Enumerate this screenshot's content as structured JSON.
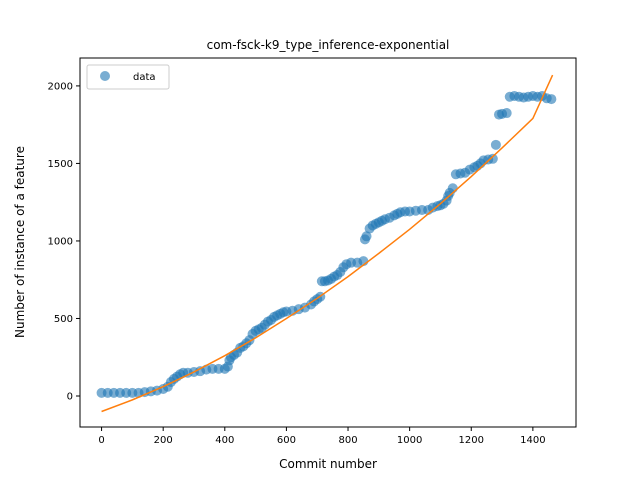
{
  "chart_data": {
    "type": "scatter",
    "title": "com-fsck-k9_type_inference-exponential",
    "xlabel": "Commit number",
    "ylabel": "Number of instance of a feature",
    "xlim": [
      -70,
      1540
    ],
    "ylim": [
      -200,
      2180
    ],
    "xticks": [
      0,
      200,
      400,
      600,
      800,
      1000,
      1200,
      1400
    ],
    "yticks": [
      0,
      500,
      1000,
      1500,
      2000
    ],
    "grid": false,
    "legend_position": "upper-left",
    "colors": {
      "data": "#1f77b4",
      "fit": "#ff7f0e"
    },
    "series": [
      {
        "name": "data",
        "kind": "scatter",
        "points": [
          [
            0,
            20
          ],
          [
            20,
            20
          ],
          [
            40,
            20
          ],
          [
            60,
            20
          ],
          [
            80,
            20
          ],
          [
            100,
            20
          ],
          [
            120,
            20
          ],
          [
            140,
            25
          ],
          [
            160,
            30
          ],
          [
            180,
            35
          ],
          [
            200,
            45
          ],
          [
            215,
            60
          ],
          [
            225,
            90
          ],
          [
            235,
            110
          ],
          [
            245,
            125
          ],
          [
            255,
            140
          ],
          [
            265,
            150
          ],
          [
            280,
            150
          ],
          [
            300,
            155
          ],
          [
            320,
            160
          ],
          [
            340,
            170
          ],
          [
            360,
            175
          ],
          [
            380,
            175
          ],
          [
            400,
            175
          ],
          [
            410,
            190
          ],
          [
            415,
            230
          ],
          [
            420,
            250
          ],
          [
            430,
            265
          ],
          [
            440,
            280
          ],
          [
            450,
            310
          ],
          [
            460,
            320
          ],
          [
            470,
            340
          ],
          [
            480,
            360
          ],
          [
            490,
            400
          ],
          [
            500,
            420
          ],
          [
            510,
            430
          ],
          [
            520,
            440
          ],
          [
            530,
            460
          ],
          [
            540,
            480
          ],
          [
            550,
            490
          ],
          [
            560,
            510
          ],
          [
            570,
            520
          ],
          [
            580,
            530
          ],
          [
            590,
            540
          ],
          [
            600,
            545
          ],
          [
            620,
            550
          ],
          [
            640,
            560
          ],
          [
            660,
            570
          ],
          [
            680,
            590
          ],
          [
            690,
            610
          ],
          [
            700,
            625
          ],
          [
            710,
            640
          ],
          [
            715,
            740
          ],
          [
            725,
            740
          ],
          [
            735,
            745
          ],
          [
            745,
            755
          ],
          [
            755,
            770
          ],
          [
            765,
            780
          ],
          [
            775,
            800
          ],
          [
            785,
            830
          ],
          [
            795,
            850
          ],
          [
            810,
            860
          ],
          [
            830,
            860
          ],
          [
            850,
            870
          ],
          [
            855,
            1010
          ],
          [
            860,
            1030
          ],
          [
            870,
            1080
          ],
          [
            880,
            1100
          ],
          [
            890,
            1110
          ],
          [
            900,
            1120
          ],
          [
            910,
            1130
          ],
          [
            920,
            1140
          ],
          [
            935,
            1150
          ],
          [
            950,
            1165
          ],
          [
            960,
            1175
          ],
          [
            970,
            1185
          ],
          [
            985,
            1190
          ],
          [
            1000,
            1190
          ],
          [
            1020,
            1195
          ],
          [
            1040,
            1200
          ],
          [
            1060,
            1200
          ],
          [
            1075,
            1215
          ],
          [
            1090,
            1225
          ],
          [
            1100,
            1230
          ],
          [
            1110,
            1240
          ],
          [
            1120,
            1260
          ],
          [
            1125,
            1290
          ],
          [
            1130,
            1310
          ],
          [
            1140,
            1340
          ],
          [
            1150,
            1430
          ],
          [
            1165,
            1435
          ],
          [
            1180,
            1440
          ],
          [
            1195,
            1460
          ],
          [
            1210,
            1475
          ],
          [
            1220,
            1485
          ],
          [
            1230,
            1500
          ],
          [
            1240,
            1520
          ],
          [
            1255,
            1525
          ],
          [
            1270,
            1530
          ],
          [
            1280,
            1620
          ],
          [
            1290,
            1815
          ],
          [
            1300,
            1820
          ],
          [
            1315,
            1825
          ],
          [
            1325,
            1930
          ],
          [
            1340,
            1935
          ],
          [
            1355,
            1930
          ],
          [
            1370,
            1925
          ],
          [
            1385,
            1930
          ],
          [
            1400,
            1935
          ],
          [
            1415,
            1930
          ],
          [
            1430,
            1935
          ],
          [
            1445,
            1920
          ],
          [
            1460,
            1915
          ]
        ]
      },
      {
        "name": "",
        "kind": "line",
        "points": [
          [
            0,
            -100
          ],
          [
            100,
            -25
          ],
          [
            200,
            60
          ],
          [
            300,
            155
          ],
          [
            400,
            260
          ],
          [
            500,
            375
          ],
          [
            600,
            500
          ],
          [
            700,
            630
          ],
          [
            800,
            770
          ],
          [
            900,
            920
          ],
          [
            1000,
            1075
          ],
          [
            1100,
            1240
          ],
          [
            1200,
            1415
          ],
          [
            1300,
            1600
          ],
          [
            1400,
            1790
          ],
          [
            1464,
            2070
          ]
        ]
      }
    ]
  }
}
